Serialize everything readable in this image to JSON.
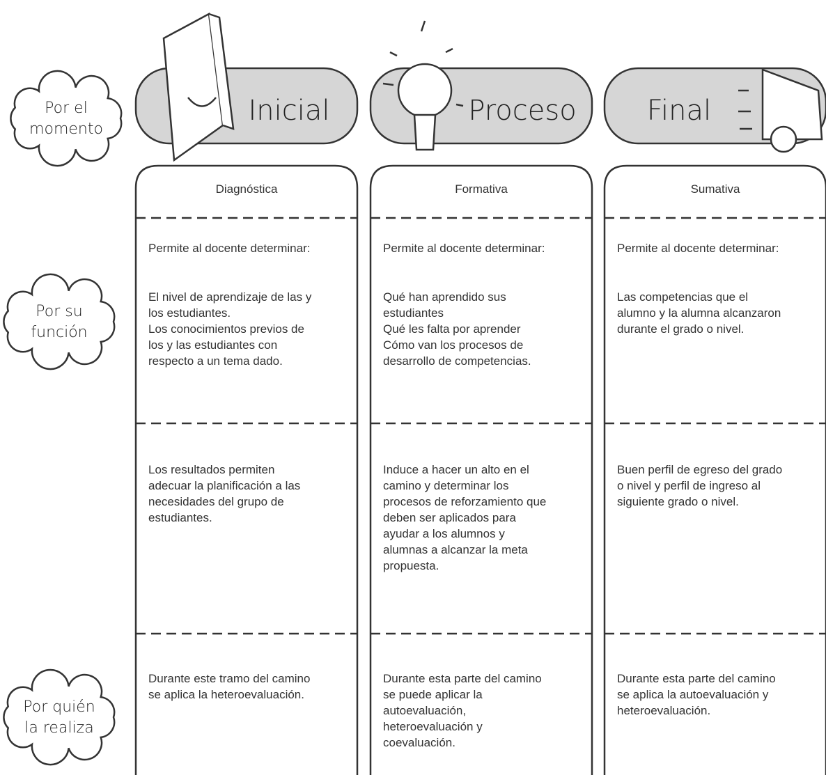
{
  "row_labels": [
    [
      "Por el",
      "momento"
    ],
    [
      "Por su",
      "función"
    ],
    [
      "Por quién",
      "la realiza"
    ]
  ],
  "columns": [
    {
      "title": "Inicial",
      "type": "Diagnóstica",
      "function_intro": "Permite al docente determinar:",
      "function": [
        "El nivel de aprendizaje de las y",
        "los estudiantes.",
        "Los conocimientos previos de",
        "los y las estudiantes con",
        "respecto a un tema dado."
      ],
      "purpose": [
        "Los resultados permiten",
        "adecuar la planificación a las",
        "necesidades del grupo de",
        "estudiantes."
      ],
      "who": [
        "Durante este tramo del camino",
        "se aplica la heteroevaluación."
      ]
    },
    {
      "title": "Proceso",
      "type": "Formativa",
      "function_intro": "Permite al docente determinar:",
      "function": [
        "Qué han aprendido sus",
        "estudiantes",
        "Qué les falta por aprender",
        "Cómo van los procesos de",
        "desarrollo de competencias."
      ],
      "purpose": [
        "Induce a hacer un alto en el",
        "camino y determinar los",
        "procesos de reforzamiento que",
        "deben ser aplicados para",
        "ayudar a los alumnos y",
        "alumnas a alcanzar la meta",
        "propuesta."
      ],
      "who": [
        "Durante esta parte del camino",
        "se puede aplicar la",
        "autoevaluación,",
        "heteroevaluación y",
        "coevaluación."
      ]
    },
    {
      "title": "Final",
      "type": "Sumativa",
      "function_intro": "Permite al docente determinar:",
      "function": [
        "Las competencias que el",
        "alumno y la alumna alcanzaron",
        "durante el grado o nivel."
      ],
      "purpose": [
        "Buen perfil de egreso del grado",
        "o nivel y perfil de ingreso al",
        "siguiente grado o nivel."
      ],
      "who": [
        "Durante esta parte del camino",
        "se aplica la autoevaluación y",
        "heteroevaluación."
      ]
    }
  ]
}
